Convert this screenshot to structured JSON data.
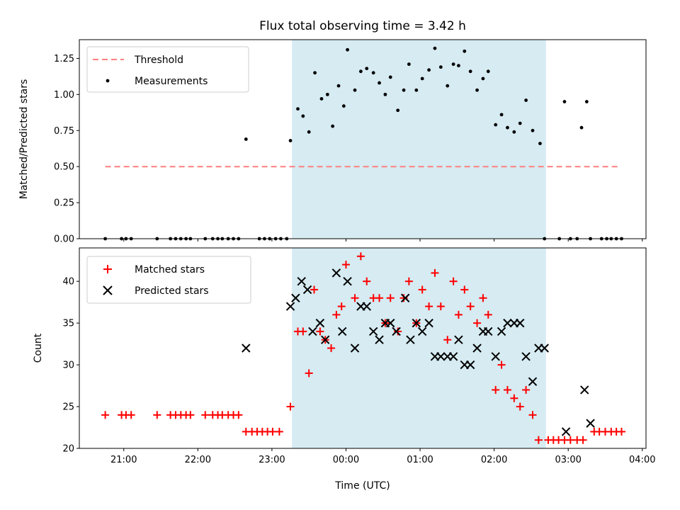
{
  "chart_data": [
    {
      "type": "scatter",
      "title": "Flux total observing time = 3.42 h",
      "ylabel": "Matched/Predicted stars",
      "ylim": [
        0,
        1.38
      ],
      "yticks": [
        "0.00",
        "0.25",
        "0.50",
        "0.75",
        "1.00",
        "1.25"
      ],
      "shaded_span": [
        23.27,
        26.7
      ],
      "threshold": {
        "name": "Threshold",
        "value": 0.5,
        "x_range": [
          20.75,
          27.7
        ],
        "color": "#ff7f7f"
      },
      "legend": {
        "placement": "top-left",
        "entries": [
          "Threshold",
          "Measurements"
        ]
      },
      "series": [
        {
          "name": "Measurements",
          "color": "#000000",
          "x": [
            20.75,
            20.97,
            21.03,
            21.1,
            21.45,
            21.63,
            21.7,
            21.77,
            21.84,
            21.9,
            22.1,
            22.2,
            22.27,
            22.33,
            22.41,
            22.48,
            22.55,
            22.65,
            22.83,
            22.9,
            22.97,
            23.05,
            23.12,
            23.2,
            23.25,
            23.35,
            23.42,
            23.5,
            23.58,
            23.67,
            23.75,
            23.82,
            23.9,
            23.97,
            24.02,
            24.12,
            24.2,
            24.28,
            24.37,
            24.45,
            24.53,
            24.6,
            24.7,
            24.78,
            24.85,
            24.95,
            25.03,
            25.12,
            25.2,
            25.28,
            25.37,
            25.45,
            25.52,
            25.6,
            25.68,
            25.77,
            25.85,
            25.92,
            26.02,
            26.1,
            26.18,
            26.27,
            26.35,
            26.43,
            26.52,
            26.62,
            26.68,
            26.88,
            26.95,
            27.03,
            27.12,
            27.18,
            27.25,
            27.3,
            27.45,
            27.52,
            27.58,
            27.65,
            27.72
          ],
          "values": [
            0,
            0,
            0,
            0,
            0,
            0,
            0,
            0,
            0,
            0,
            0,
            0,
            0,
            0,
            0,
            0,
            0,
            0.69,
            0,
            0,
            0,
            0,
            0,
            0,
            0.68,
            0.9,
            0.85,
            0.74,
            1.15,
            0.97,
            1.0,
            0.78,
            1.06,
            0.92,
            1.31,
            1.03,
            1.16,
            1.18,
            1.15,
            1.08,
            1.0,
            1.12,
            0.89,
            1.03,
            1.21,
            1.03,
            1.11,
            1.17,
            1.32,
            1.19,
            1.06,
            1.21,
            1.2,
            1.3,
            1.16,
            1.03,
            1.11,
            1.16,
            0.79,
            0.86,
            0.77,
            0.74,
            0.8,
            0.96,
            0.75,
            0.66,
            0,
            0,
            0.95,
            0,
            0,
            0.77,
            0.95,
            0,
            0,
            0,
            0,
            0,
            0
          ]
        }
      ]
    },
    {
      "type": "scatter",
      "xlabel": "Time (UTC)",
      "ylabel": "Count",
      "xlim": [
        20.4,
        28.05
      ],
      "ylim": [
        20,
        44
      ],
      "yticks": [
        "20",
        "25",
        "30",
        "35",
        "40"
      ],
      "xticks": [
        {
          "value": 21,
          "label": "21:00"
        },
        {
          "value": 22,
          "label": "22:00"
        },
        {
          "value": 23,
          "label": "23:00"
        },
        {
          "value": 24,
          "label": "00:00"
        },
        {
          "value": 25,
          "label": "01:00"
        },
        {
          "value": 26,
          "label": "02:00"
        },
        {
          "value": 27,
          "label": "03:00"
        },
        {
          "value": 28,
          "label": "04:00"
        }
      ],
      "shaded_span": [
        23.27,
        26.7
      ],
      "legend": {
        "placement": "top-left",
        "entries": [
          "Matched stars",
          "Predicted stars"
        ]
      },
      "series": [
        {
          "name": "Matched stars",
          "color": "#ff0000",
          "x": [
            20.75,
            20.97,
            21.03,
            21.1,
            21.45,
            21.63,
            21.7,
            21.77,
            21.84,
            21.9,
            22.1,
            22.2,
            22.27,
            22.33,
            22.41,
            22.48,
            22.55,
            22.65,
            22.73,
            22.8,
            22.87,
            22.94,
            23.01,
            23.1,
            23.25,
            23.35,
            23.42,
            23.5,
            23.57,
            23.65,
            23.72,
            23.8,
            23.87,
            23.94,
            24.0,
            24.12,
            24.2,
            24.28,
            24.37,
            24.45,
            24.53,
            24.6,
            24.7,
            24.78,
            24.85,
            24.95,
            25.03,
            25.12,
            25.2,
            25.28,
            25.37,
            25.45,
            25.52,
            25.6,
            25.68,
            25.77,
            25.85,
            25.92,
            26.02,
            26.1,
            26.18,
            26.27,
            26.35,
            26.43,
            26.52,
            26.6,
            26.73,
            26.8,
            26.87,
            26.95,
            27.03,
            27.12,
            27.2,
            27.35,
            27.42,
            27.5,
            27.58,
            27.65,
            27.72
          ],
          "values": [
            24,
            24,
            24,
            24,
            24,
            24,
            24,
            24,
            24,
            24,
            24,
            24,
            24,
            24,
            24,
            24,
            24,
            22,
            22,
            22,
            22,
            22,
            22,
            22,
            25,
            34,
            34,
            29,
            39,
            34,
            33,
            32,
            36,
            37,
            42,
            38,
            43,
            40,
            38,
            38,
            35,
            38,
            34,
            38,
            40,
            35,
            39,
            37,
            41,
            37,
            33,
            40,
            36,
            39,
            37,
            35,
            38,
            36,
            27,
            30,
            27,
            26,
            25,
            27,
            24,
            21,
            21,
            21,
            21,
            21,
            21,
            21,
            21,
            22,
            22,
            22,
            22,
            22,
            22
          ]
        },
        {
          "name": "Predicted stars",
          "color": "#000000",
          "x": [
            22.65,
            23.25,
            23.32,
            23.4,
            23.48,
            23.55,
            23.65,
            23.72,
            23.87,
            23.95,
            24.02,
            24.12,
            24.2,
            24.28,
            24.37,
            24.45,
            24.53,
            24.6,
            24.68,
            24.8,
            24.87,
            24.95,
            25.03,
            25.12,
            25.2,
            25.28,
            25.37,
            25.45,
            25.52,
            25.6,
            25.68,
            25.77,
            25.85,
            25.92,
            26.02,
            26.1,
            26.18,
            26.27,
            26.35,
            26.43,
            26.52,
            26.6,
            26.68,
            26.97,
            27.22,
            27.3
          ],
          "values": [
            32,
            37,
            38,
            40,
            39,
            34,
            35,
            33,
            41,
            34,
            40,
            32,
            37,
            37,
            34,
            33,
            35,
            35,
            34,
            38,
            33,
            35,
            34,
            35,
            31,
            31,
            31,
            31,
            33,
            30,
            30,
            32,
            34,
            34,
            31,
            34,
            35,
            35,
            35,
            31,
            28,
            32,
            32,
            22,
            27,
            23
          ]
        }
      ]
    }
  ]
}
